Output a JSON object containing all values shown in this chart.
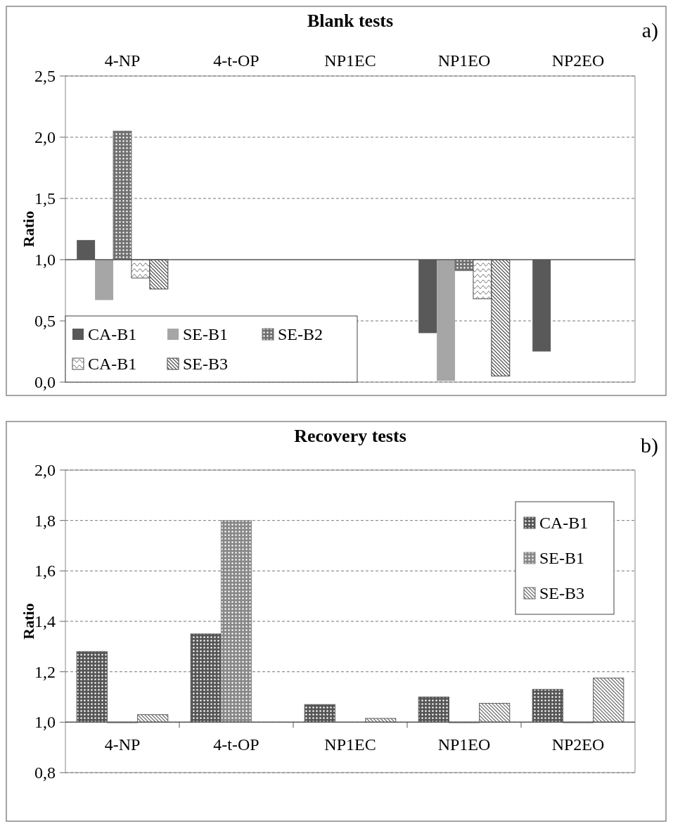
{
  "chart_data": [
    {
      "type": "bar",
      "title": "Blank tests",
      "ylabel": "Ratio",
      "annotations": [
        "a)"
      ],
      "categories": [
        "4-NP",
        "4-t-OP",
        "NP1EC",
        "NP1EO",
        "NP2EO"
      ],
      "series": [
        {
          "name": "CA-B1",
          "color": "#595959",
          "base": [
            1,
            null,
            null,
            1,
            1
          ],
          "values": [
            0.16,
            null,
            null,
            -0.6,
            -0.75
          ]
        },
        {
          "name": "SE-B1",
          "color": "#a6a6a6",
          "base": [
            1,
            null,
            null,
            1,
            null
          ],
          "values": [
            -0.33,
            null,
            null,
            -0.99,
            null
          ]
        },
        {
          "name": "SE-B2",
          "color": "#707070",
          "base": [
            1,
            null,
            null,
            1,
            null
          ],
          "values": [
            1.05,
            null,
            null,
            -0.09,
            null
          ]
        },
        {
          "name": "CA-B1",
          "color": "#505050",
          "base": [
            1,
            null,
            null,
            1,
            null
          ],
          "values": [
            -0.15,
            null,
            null,
            -0.32,
            null
          ]
        },
        {
          "name": "SE-B3",
          "color": "#404040",
          "base": [
            1,
            null,
            null,
            1,
            null
          ],
          "values": [
            -0.24,
            null,
            null,
            -0.95,
            null
          ]
        }
      ],
      "ref_lines": [
        {
          "axis": "y",
          "value": 1,
          "color": "#555555"
        }
      ],
      "ylim": [
        0,
        2.5
      ],
      "yticks": [
        {
          "value": 0,
          "label": "0,0"
        },
        {
          "value": 0.5,
          "label": "0,5"
        },
        {
          "value": 1,
          "label": "1,0"
        },
        {
          "value": 1.5,
          "label": "1,5"
        },
        {
          "value": 2,
          "label": "2,0"
        },
        {
          "value": 2.5,
          "label": "2,5"
        }
      ],
      "grid": "y",
      "legend": "bottom left"
    },
    {
      "type": "bar",
      "title": "Recovery tests",
      "ylabel": "Ratio",
      "annotations": [
        "b)"
      ],
      "categories": [
        "4-NP",
        "4-t-OP",
        "NP1EC",
        "NP1EO",
        "NP2EO"
      ],
      "series": [
        {
          "name": "CA-B1",
          "color": "#555555",
          "base": [
            1,
            1,
            1,
            1,
            1
          ],
          "values": [
            0.28,
            0.35,
            0.07,
            0.1,
            0.13
          ]
        },
        {
          "name": "SE-B1",
          "color": "#888888",
          "base": [
            1,
            1,
            null,
            1,
            1
          ],
          "values": [
            0,
            0.8,
            null,
            0,
            0
          ]
        },
        {
          "name": "SE-B3",
          "color": "#606060",
          "base": [
            1,
            null,
            1,
            1,
            1
          ],
          "values": [
            0.03,
            null,
            0.015,
            0.075,
            0.175
          ]
        }
      ],
      "ylim": [
        0.8,
        2
      ],
      "yticks": [
        {
          "value": 0.8,
          "label": "0,8"
        },
        {
          "value": 1,
          "label": "1,0"
        },
        {
          "value": 1.2,
          "label": "1,2"
        },
        {
          "value": 1.4,
          "label": "1,4"
        },
        {
          "value": 1.6,
          "label": "1,6"
        },
        {
          "value": 1.8,
          "label": "1,8"
        },
        {
          "value": 2,
          "label": "2,0"
        }
      ],
      "grid": "y",
      "legend": "top right"
    }
  ]
}
